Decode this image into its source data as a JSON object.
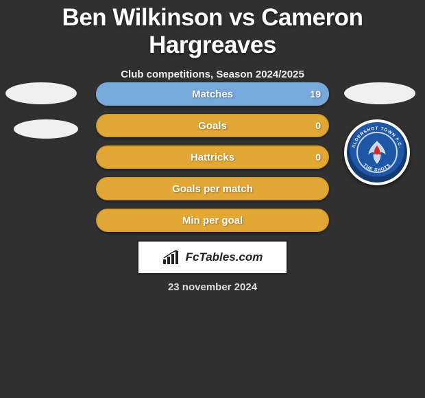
{
  "title": "Ben Wilkinson vs Cameron Hargreaves",
  "subtitle": "Club competitions, Season 2024/2025",
  "date": "23 november 2024",
  "brand": "FcTables.com",
  "colors": {
    "background": "#303030",
    "bar_empty": "#e2a735",
    "bar_right_fill": "#77a9dd",
    "text": "#ffffff",
    "crest_primary": "#1d57a5",
    "crest_accent": "#d22f2f"
  },
  "stats": [
    {
      "label": "Matches",
      "right_value": "19",
      "right_fill_pct": 100
    },
    {
      "label": "Goals",
      "right_value": "0",
      "right_fill_pct": 0
    },
    {
      "label": "Hattricks",
      "right_value": "0",
      "right_fill_pct": 0
    },
    {
      "label": "Goals per match",
      "right_value": "",
      "right_fill_pct": 0
    },
    {
      "label": "Min per goal",
      "right_value": "",
      "right_fill_pct": 0
    }
  ],
  "right_crest_text": "ALDERSHOT TOWN F.C.",
  "right_crest_motto": "THE SHOTS"
}
